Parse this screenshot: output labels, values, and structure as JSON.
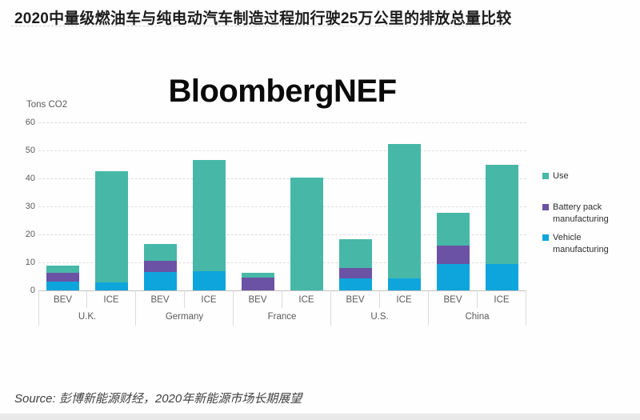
{
  "title": "2020中量级燃油车与纯电动汽车制造过程加行驶25万公里的排放总量比较",
  "watermark": "BloombergNEF",
  "source": "Source: 彭博新能源财经，2020年新能源市场长期展望",
  "chart_data": {
    "type": "bar",
    "stacked": true,
    "unit_label": "Tons CO2",
    "ylim": [
      0,
      60
    ],
    "yticks": [
      0,
      10,
      20,
      30,
      40,
      50,
      60
    ],
    "grid": "dashed horizontal",
    "legend_position": "right",
    "groups": [
      "U.K.",
      "Germany",
      "France",
      "U.S.",
      "China"
    ],
    "colors": {
      "use": "#47b8a8",
      "battery_pack_manufacturing": "#6b52a4",
      "vehicle_manufacturing": "#0ea5dc"
    },
    "legend": [
      {
        "label": "Use",
        "lines": [
          "Use"
        ],
        "color": "#47b8a8"
      },
      {
        "label": "Battery pack manufacturing",
        "lines": [
          "Battery pack",
          "manufacturing"
        ],
        "color": "#6b52a4"
      },
      {
        "label": "Vehicle manufacturing",
        "lines": [
          "Vehicle",
          "manufacturing"
        ],
        "color": "#0ea5dc"
      }
    ],
    "bars": [
      {
        "group": "U.K.",
        "label": "BEV",
        "vehicle_manufacturing": 3.2,
        "battery_pack_manufacturing": 3.1,
        "use": 2.5,
        "total": 8.8
      },
      {
        "group": "U.K.",
        "label": "ICE",
        "vehicle_manufacturing": 3.0,
        "battery_pack_manufacturing": 0,
        "use": 39.5,
        "total": 42.5
      },
      {
        "group": "Germany",
        "label": "BEV",
        "vehicle_manufacturing": 6.5,
        "battery_pack_manufacturing": 4.2,
        "use": 6.0,
        "total": 16.7
      },
      {
        "group": "Germany",
        "label": "ICE",
        "vehicle_manufacturing": 6.8,
        "battery_pack_manufacturing": 0,
        "use": 39.9,
        "total": 46.7
      },
      {
        "group": "France",
        "label": "BEV",
        "vehicle_manufacturing": 0,
        "battery_pack_manufacturing": 4.6,
        "use": 1.7,
        "total": 6.3
      },
      {
        "group": "France",
        "label": "ICE",
        "vehicle_manufacturing": 0,
        "battery_pack_manufacturing": 0,
        "use": 40.2,
        "total": 40.2
      },
      {
        "group": "U.S.",
        "label": "BEV",
        "vehicle_manufacturing": 4.3,
        "battery_pack_manufacturing": 3.7,
        "use": 10.2,
        "total": 18.2
      },
      {
        "group": "U.S.",
        "label": "ICE",
        "vehicle_manufacturing": 4.4,
        "battery_pack_manufacturing": 0,
        "use": 47.8,
        "total": 52.2
      },
      {
        "group": "China",
        "label": "BEV",
        "vehicle_manufacturing": 9.5,
        "battery_pack_manufacturing": 6.6,
        "use": 11.5,
        "total": 27.6
      },
      {
        "group": "China",
        "label": "ICE",
        "vehicle_manufacturing": 9.5,
        "battery_pack_manufacturing": 0,
        "use": 35.5,
        "total": 45.0
      }
    ]
  }
}
